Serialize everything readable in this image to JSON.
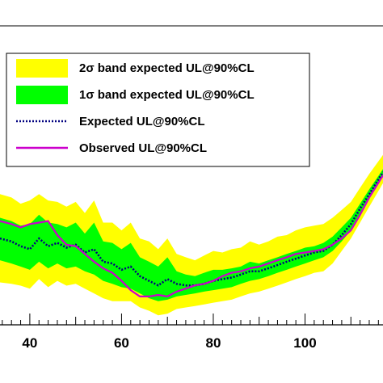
{
  "chart_data": {
    "type": "line",
    "title": "",
    "xlabel": "",
    "ylabel": "",
    "xlim": [
      33.5,
      117
    ],
    "ylim": [
      0,
      1
    ],
    "grid": false,
    "legend_placement": "top-left",
    "x_ticks": [
      {
        "value": 40,
        "label": "40"
      },
      {
        "value": 60,
        "label": "60"
      },
      {
        "value": 80,
        "label": "80"
      },
      {
        "value": 100,
        "label": "100"
      }
    ],
    "colors": {
      "band_2sigma": "#ffff00",
      "band_1sigma": "#00ff00",
      "expected": "#000080",
      "observed": "#cc00cc"
    },
    "legend": [
      {
        "key": "band_2sigma",
        "label": "2σ band expected UL@90%CL",
        "style": "fill",
        "color": "#ffff00"
      },
      {
        "key": "band_1sigma",
        "label": "1σ band expected UL@90%CL",
        "style": "fill",
        "color": "#00ff00"
      },
      {
        "key": "expected",
        "label": "Expected UL@90%CL",
        "style": "dotted",
        "color": "#000080"
      },
      {
        "key": "observed",
        "label": "Observed UL@90%CL",
        "style": "solid",
        "color": "#cc00cc"
      }
    ],
    "x": [
      33.5,
      36,
      38,
      40,
      42,
      44,
      46,
      48,
      50,
      52,
      54,
      56,
      58,
      60,
      62,
      64,
      66,
      68,
      70,
      72,
      74,
      76,
      78,
      80,
      82,
      84,
      86,
      88,
      90,
      92,
      94,
      96,
      98,
      100,
      102,
      104,
      106,
      108,
      110,
      112,
      114,
      117
    ],
    "series": [
      {
        "key": "band_2sigma",
        "lower": [
          0.142,
          0.137,
          0.131,
          0.121,
          0.153,
          0.126,
          0.147,
          0.131,
          0.137,
          0.121,
          0.105,
          0.089,
          0.079,
          0.079,
          0.079,
          0.058,
          0.047,
          0.032,
          0.037,
          0.053,
          0.058,
          0.063,
          0.068,
          0.074,
          0.079,
          0.084,
          0.095,
          0.105,
          0.111,
          0.121,
          0.131,
          0.142,
          0.153,
          0.163,
          0.174,
          0.179,
          0.205,
          0.247,
          0.289,
          0.342,
          0.395,
          0.474
        ],
        "upper": [
          0.437,
          0.426,
          0.405,
          0.416,
          0.437,
          0.416,
          0.411,
          0.395,
          0.411,
          0.374,
          0.416,
          0.342,
          0.342,
          0.316,
          0.342,
          0.289,
          0.279,
          0.253,
          0.289,
          0.237,
          0.226,
          0.216,
          0.232,
          0.247,
          0.242,
          0.253,
          0.258,
          0.279,
          0.268,
          0.279,
          0.295,
          0.3,
          0.316,
          0.326,
          0.332,
          0.337,
          0.358,
          0.384,
          0.411,
          0.458,
          0.505,
          0.568
        ]
      },
      {
        "key": "band_1sigma",
        "lower": [
          0.216,
          0.205,
          0.195,
          0.184,
          0.211,
          0.189,
          0.205,
          0.189,
          0.195,
          0.179,
          0.168,
          0.147,
          0.137,
          0.126,
          0.121,
          0.105,
          0.089,
          0.079,
          0.084,
          0.095,
          0.1,
          0.105,
          0.111,
          0.116,
          0.121,
          0.126,
          0.137,
          0.147,
          0.153,
          0.163,
          0.174,
          0.184,
          0.195,
          0.205,
          0.216,
          0.226,
          0.247,
          0.279,
          0.316,
          0.368,
          0.421,
          0.5
        ],
        "upper": [
          0.358,
          0.347,
          0.332,
          0.337,
          0.368,
          0.342,
          0.337,
          0.326,
          0.342,
          0.305,
          0.342,
          0.279,
          0.274,
          0.253,
          0.274,
          0.226,
          0.211,
          0.195,
          0.226,
          0.179,
          0.168,
          0.163,
          0.174,
          0.184,
          0.184,
          0.189,
          0.195,
          0.211,
          0.205,
          0.216,
          0.226,
          0.237,
          0.247,
          0.258,
          0.263,
          0.274,
          0.295,
          0.326,
          0.358,
          0.405,
          0.453,
          0.521
        ]
      },
      {
        "key": "expected",
        "name": "Expected UL@90%CL",
        "values": [
          0.289,
          0.279,
          0.263,
          0.253,
          0.289,
          0.263,
          0.274,
          0.258,
          0.268,
          0.242,
          0.253,
          0.211,
          0.205,
          0.184,
          0.195,
          0.163,
          0.147,
          0.132,
          0.153,
          0.137,
          0.132,
          0.132,
          0.137,
          0.147,
          0.153,
          0.158,
          0.168,
          0.179,
          0.179,
          0.189,
          0.2,
          0.211,
          0.221,
          0.232,
          0.242,
          0.247,
          0.268,
          0.3,
          0.337,
          0.389,
          0.437,
          0.511
        ]
      },
      {
        "key": "observed",
        "name": "Observed UL@90%CL",
        "values": [
          0.347,
          0.337,
          0.326,
          0.337,
          0.342,
          0.347,
          0.3,
          0.268,
          0.263,
          0.237,
          0.211,
          0.189,
          0.174,
          0.147,
          0.116,
          0.095,
          0.095,
          0.1,
          0.095,
          0.111,
          0.121,
          0.132,
          0.137,
          0.147,
          0.163,
          0.174,
          0.179,
          0.189,
          0.195,
          0.205,
          0.216,
          0.226,
          0.237,
          0.242,
          0.247,
          0.253,
          0.268,
          0.289,
          0.316,
          0.368,
          0.426,
          0.5
        ]
      }
    ]
  }
}
